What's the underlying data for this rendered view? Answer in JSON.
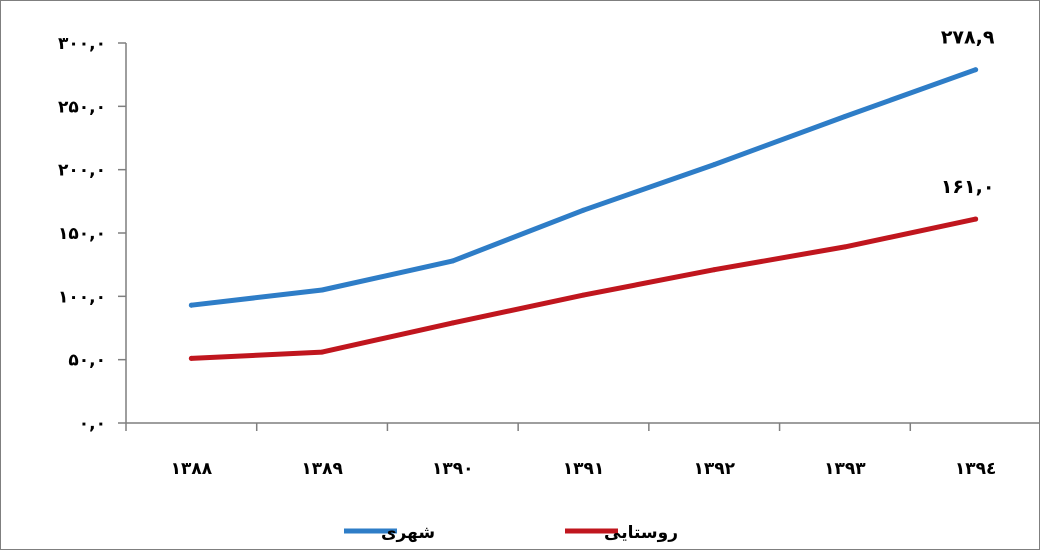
{
  "chart_data": {
    "type": "line",
    "title": "",
    "xlabel": "",
    "ylabel": "",
    "categories": [
      "۱۳۸۸",
      "۱۳۸۹",
      "۱۳۹۰",
      "۱۳۹۱",
      "۱۳۹۲",
      "۱۳۹۳",
      "۱۳۹٤"
    ],
    "y_ticks": [
      "۰,۰",
      "۵۰,۰",
      "۱۰۰,۰",
      "۱۵۰,۰",
      "۲۰۰,۰",
      "۲۵۰,۰",
      "۳۰۰,۰"
    ],
    "y_tick_values": [
      0,
      50,
      100,
      150,
      200,
      250,
      300
    ],
    "ylim": [
      0,
      300
    ],
    "grid": false,
    "legend_position": "bottom",
    "series": [
      {
        "name": "شهری",
        "color": "#2e7dc7",
        "values": [
          93.0,
          105.0,
          128.0,
          168.0,
          204.0,
          242.0,
          278.9
        ],
        "end_label": "۲۷۸,۹"
      },
      {
        "name": "روستایی",
        "color": "#c0161e",
        "values": [
          51.0,
          56.0,
          79.0,
          101.0,
          121.0,
          139.0,
          161.0
        ],
        "end_label": "۱۶۱,۰"
      }
    ]
  }
}
